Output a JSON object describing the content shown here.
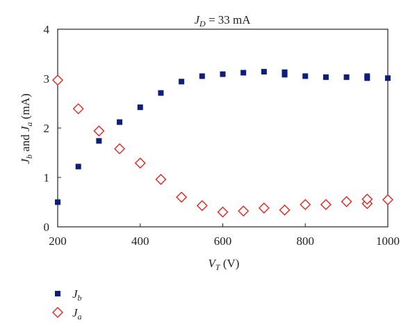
{
  "chart_data": {
    "type": "scatter",
    "title": {
      "italic": "J",
      "sub": "D",
      "rest": " = 33 mA"
    },
    "xlabel": {
      "italic": "V",
      "sub": "T",
      "rest": " (V)"
    },
    "ylabel": {
      "j1": "J",
      "s1": "b",
      "mid": " and ",
      "j2": "J",
      "s2": "a",
      "rest": " (mA)"
    },
    "xlim": [
      200,
      1000
    ],
    "ylim": [
      0,
      4
    ],
    "xticks": [
      200,
      400,
      600,
      800,
      1000
    ],
    "yticks": [
      0,
      1,
      2,
      3,
      4
    ],
    "grid": false,
    "legend_position": "bottom-left",
    "series": [
      {
        "name": {
          "italic": "J",
          "sub": "b"
        },
        "marker": "filled-square",
        "color": "#0d1f7a",
        "points": [
          [
            200,
            0.5
          ],
          [
            250,
            1.22
          ],
          [
            300,
            1.74
          ],
          [
            350,
            2.12
          ],
          [
            400,
            2.42
          ],
          [
            450,
            2.71
          ],
          [
            500,
            2.94
          ],
          [
            550,
            3.05
          ],
          [
            600,
            3.09
          ],
          [
            650,
            3.12
          ],
          [
            700,
            3.14
          ],
          [
            750,
            3.08
          ],
          [
            750,
            3.13
          ],
          [
            800,
            3.05
          ],
          [
            850,
            3.03
          ],
          [
            900,
            3.03
          ],
          [
            950,
            3.01
          ],
          [
            950,
            3.05
          ],
          [
            1000,
            3.01
          ]
        ]
      },
      {
        "name": {
          "italic": "J",
          "sub": "a"
        },
        "marker": "open-diamond",
        "color": "#e8231e",
        "points": [
          [
            200,
            2.97
          ],
          [
            250,
            2.39
          ],
          [
            300,
            1.94
          ],
          [
            350,
            1.58
          ],
          [
            400,
            1.29
          ],
          [
            450,
            0.96
          ],
          [
            500,
            0.6
          ],
          [
            550,
            0.43
          ],
          [
            600,
            0.3
          ],
          [
            650,
            0.32
          ],
          [
            700,
            0.38
          ],
          [
            750,
            0.34
          ],
          [
            800,
            0.45
          ],
          [
            850,
            0.45
          ],
          [
            900,
            0.51
          ],
          [
            950,
            0.47
          ],
          [
            950,
            0.56
          ],
          [
            1000,
            0.55
          ]
        ]
      }
    ]
  }
}
